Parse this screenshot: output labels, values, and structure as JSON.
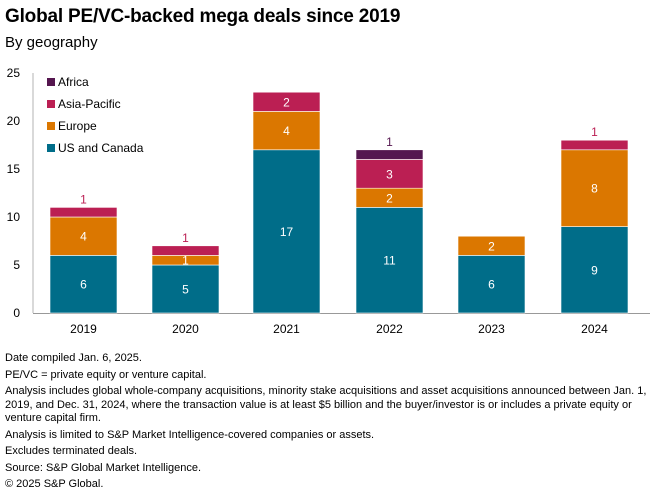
{
  "header": {
    "title": "Global PE/VC-backed mega deals since 2019",
    "subtitle": "By geography"
  },
  "chart_data": {
    "type": "bar",
    "stacked": true,
    "title": "Global PE/VC-backed mega deals since 2019",
    "subtitle": "By geography",
    "xlabel": "",
    "ylabel": "",
    "ylim": [
      0,
      25
    ],
    "yticks": [
      0,
      5,
      10,
      15,
      20,
      25
    ],
    "grid": false,
    "legend_position": "top-left",
    "categories": [
      "2019",
      "2020",
      "2021",
      "2022",
      "2023",
      "2024"
    ],
    "series": [
      {
        "name": "US and Canada",
        "color": "#006d89",
        "values": [
          6,
          5,
          17,
          11,
          6,
          9
        ]
      },
      {
        "name": "Europe",
        "color": "#db7700",
        "values": [
          4,
          1,
          4,
          2,
          2,
          8
        ]
      },
      {
        "name": "Asia-Pacific",
        "color": "#bb1f53",
        "values": [
          1,
          1,
          2,
          3,
          0,
          1
        ]
      },
      {
        "name": "Africa",
        "color": "#55164f",
        "values": [
          0,
          0,
          0,
          1,
          0,
          0
        ]
      }
    ],
    "legend_order": [
      "Africa",
      "Asia-Pacific",
      "Europe",
      "US and Canada"
    ]
  },
  "notes": [
    "Date compiled Jan. 6, 2025.",
    "PE/VC = private equity or venture capital.",
    "Analysis includes global whole-company acquisitions, minority stake acquisitions and asset acquisitions announced between Jan. 1, 2019, and Dec. 31, 2024, where the transaction value is at least $5 billion and the buyer/investor is or includes a private equity or venture capital firm.",
    "Analysis is limited to S&P Market Intelligence-covered companies or assets.",
    "Excludes terminated deals.",
    "Source: S&P Global Market Intelligence.",
    "© 2025 S&P Global."
  ]
}
